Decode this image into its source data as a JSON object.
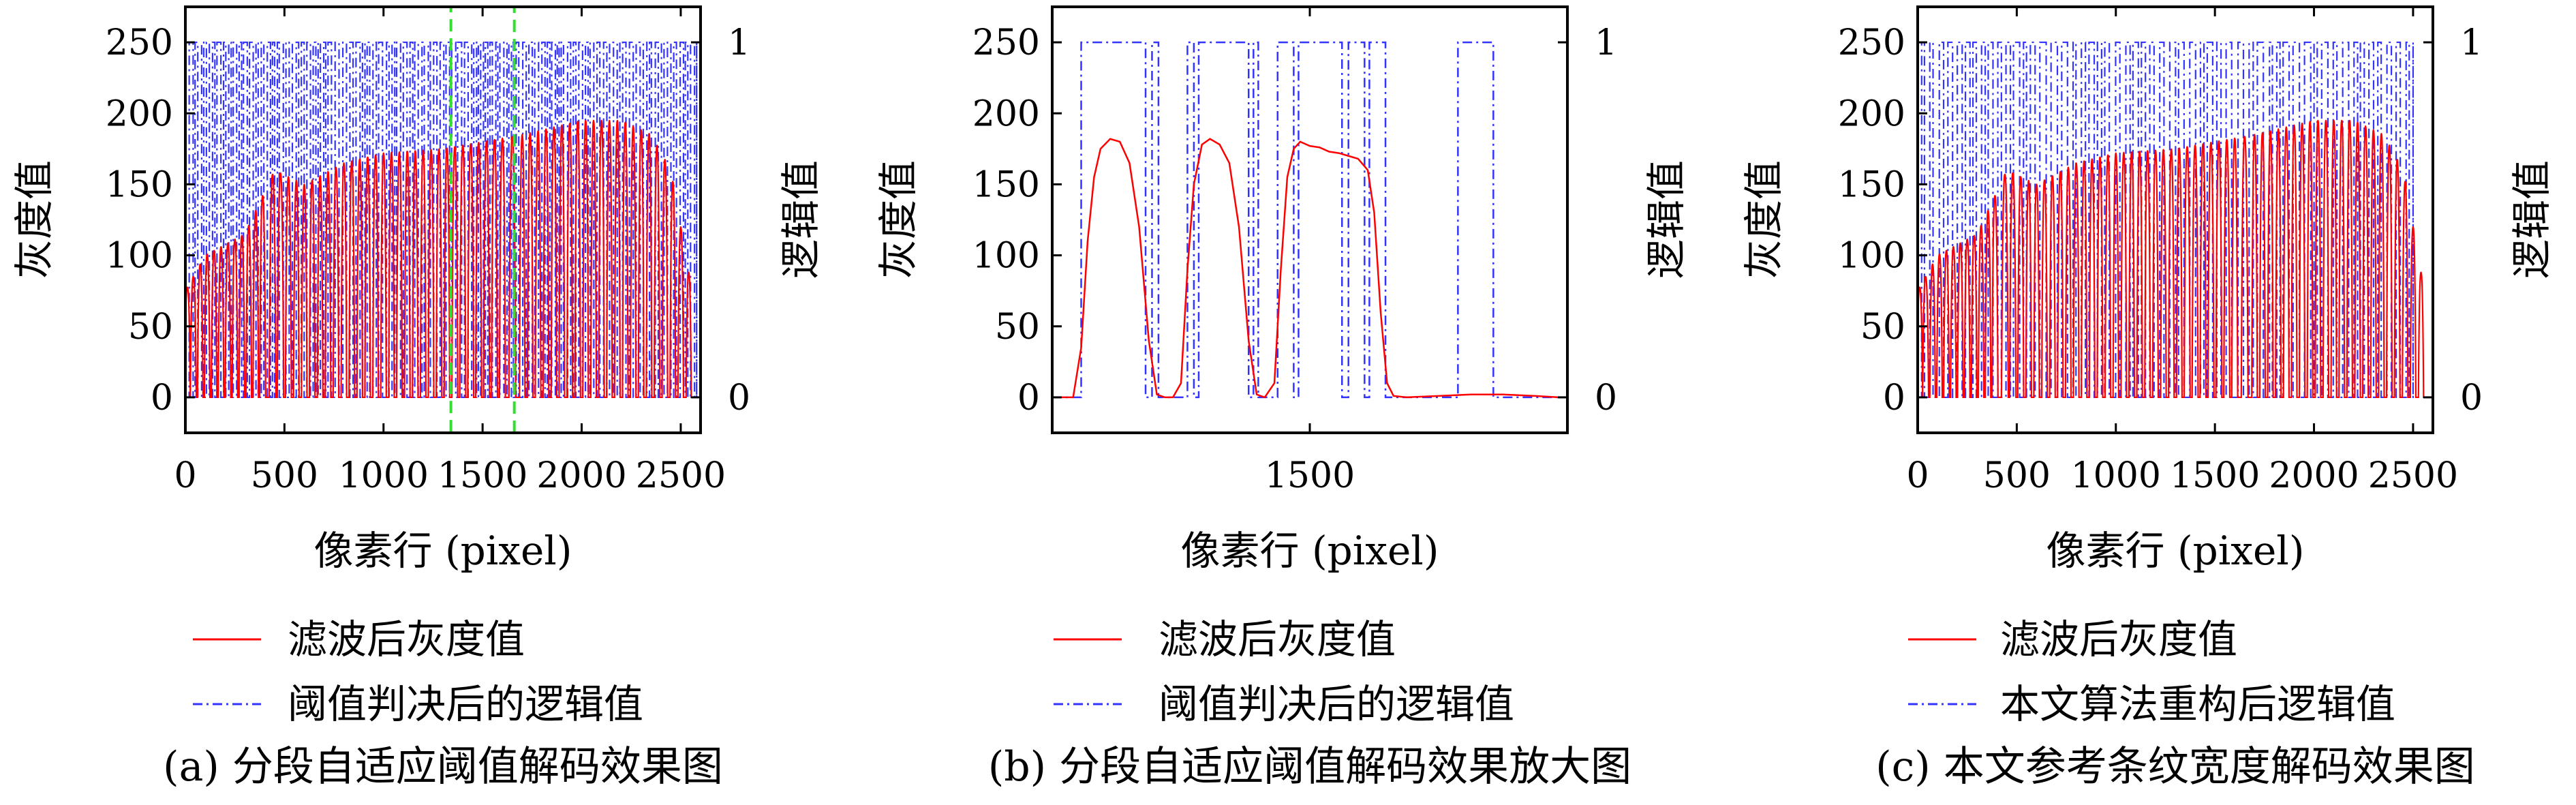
{
  "chart_data": [
    {
      "type": "line",
      "caption": "(a) 分段自适应阈值解码效果图",
      "xlabel": "像素行 (pixel)",
      "ylabel": "灰度值",
      "y2label": "逻辑值",
      "xlim": [
        0,
        2600
      ],
      "ylim": [
        -25,
        275
      ],
      "y2lim": [
        -0.1,
        1.1
      ],
      "xticks": [
        0,
        500,
        1000,
        1500,
        2000,
        2500
      ],
      "xtick_labels": [
        "0",
        "500",
        "1000",
        "1500",
        "2000",
        "2500"
      ],
      "yticks": [
        0,
        50,
        100,
        150,
        200,
        250
      ],
      "ytick_labels": [
        "0",
        "50",
        "100",
        "150",
        "200",
        "250"
      ],
      "y2ticks": [
        0,
        1
      ],
      "y2tick_labels": [
        "0",
        "1"
      ],
      "highlight_range": [
        1340,
        1660
      ],
      "series": [
        {
          "name": "滤波后灰度值",
          "color": "#ff0000",
          "style": "solid",
          "envelope": [
            [
              0,
              75
            ],
            [
              100,
              100
            ],
            [
              300,
              115
            ],
            [
              450,
              160
            ],
            [
              600,
              150
            ],
            [
              800,
              165
            ],
            [
              1000,
              172
            ],
            [
              1300,
              175
            ],
            [
              1500,
              180
            ],
            [
              1700,
              185
            ],
            [
              2000,
              195
            ],
            [
              2200,
              195
            ],
            [
              2350,
              185
            ],
            [
              2450,
              160
            ],
            [
              2550,
              80
            ],
            [
              2600,
              70
            ]
          ],
          "bars": [
            [
              10,
              30
            ],
            [
              40,
              30
            ],
            [
              75,
              28
            ],
            [
              110,
              28
            ],
            [
              145,
              28
            ],
            [
              180,
              28
            ],
            [
              215,
              28
            ],
            [
              250,
              28
            ],
            [
              285,
              28
            ],
            [
              320,
              28
            ],
            [
              355,
              28
            ],
            [
              390,
              30
            ],
            [
              440,
              34
            ],
            [
              480,
              32
            ],
            [
              520,
              30
            ],
            [
              560,
              28
            ],
            [
              600,
              28
            ],
            [
              640,
              28
            ],
            [
              680,
              28
            ],
            [
              720,
              28
            ],
            [
              760,
              28
            ],
            [
              800,
              28
            ],
            [
              840,
              28
            ],
            [
              880,
              28
            ],
            [
              920,
              28
            ],
            [
              960,
              28
            ],
            [
              1000,
              28
            ],
            [
              1040,
              28
            ],
            [
              1080,
              28
            ],
            [
              1120,
              28
            ],
            [
              1160,
              28
            ],
            [
              1200,
              28
            ],
            [
              1240,
              28
            ],
            [
              1280,
              28
            ],
            [
              1320,
              28
            ],
            [
              1360,
              30
            ],
            [
              1400,
              30
            ],
            [
              1440,
              30
            ],
            [
              1480,
              30
            ],
            [
              1520,
              30
            ],
            [
              1560,
              30
            ],
            [
              1600,
              30
            ],
            [
              1650,
              34
            ],
            [
              1700,
              28
            ],
            [
              1740,
              28
            ],
            [
              1780,
              28
            ],
            [
              1820,
              28
            ],
            [
              1860,
              28
            ],
            [
              1900,
              28
            ],
            [
              1940,
              28
            ],
            [
              1980,
              28
            ],
            [
              2020,
              28
            ],
            [
              2060,
              28
            ],
            [
              2100,
              28
            ],
            [
              2140,
              28
            ],
            [
              2180,
              28
            ],
            [
              2220,
              28
            ],
            [
              2260,
              28
            ],
            [
              2300,
              28
            ],
            [
              2340,
              28
            ],
            [
              2380,
              28
            ],
            [
              2420,
              28
            ],
            [
              2460,
              28
            ],
            [
              2500,
              28
            ],
            [
              2540,
              26
            ]
          ]
        },
        {
          "name": "阈值判决后的逻辑值",
          "color": "#3333ff",
          "style": "dashdot",
          "pattern": "dense",
          "x_range": [
            0,
            2580
          ]
        }
      ]
    },
    {
      "type": "line",
      "caption": "(b) 分段自适应阈值解码效果放大图",
      "xlabel": "像素行 (pixel)",
      "ylabel": "灰度值",
      "y2label": "逻辑值",
      "xlim": [
        1340,
        1660
      ],
      "ylim": [
        -25,
        275
      ],
      "y2lim": [
        -0.1,
        1.1
      ],
      "xticks": [
        1500
      ],
      "xtick_labels": [
        "1500"
      ],
      "yticks": [
        0,
        50,
        100,
        150,
        200,
        250
      ],
      "ytick_labels": [
        "0",
        "50",
        "100",
        "150",
        "200",
        "250"
      ],
      "y2ticks": [
        0,
        1
      ],
      "y2tick_labels": [
        "0",
        "1"
      ],
      "series": [
        {
          "name": "滤波后灰度值",
          "color": "#ff0000",
          "style": "solid",
          "points": [
            [
              1340,
              0
            ],
            [
              1353,
              0
            ],
            [
              1358,
              35
            ],
            [
              1362,
              110
            ],
            [
              1366,
              155
            ],
            [
              1370,
              175
            ],
            [
              1376,
              182
            ],
            [
              1382,
              180
            ],
            [
              1388,
              165
            ],
            [
              1394,
              120
            ],
            [
              1400,
              40
            ],
            [
              1405,
              2
            ],
            [
              1410,
              0
            ],
            [
              1415,
              0
            ],
            [
              1420,
              10
            ],
            [
              1424,
              90
            ],
            [
              1428,
              150
            ],
            [
              1433,
              178
            ],
            [
              1438,
              182
            ],
            [
              1444,
              178
            ],
            [
              1450,
              165
            ],
            [
              1456,
              120
            ],
            [
              1462,
              40
            ],
            [
              1467,
              2
            ],
            [
              1472,
              0
            ],
            [
              1478,
              10
            ],
            [
              1482,
              90
            ],
            [
              1486,
              155
            ],
            [
              1490,
              175
            ],
            [
              1494,
              180
            ],
            [
              1500,
              177
            ],
            [
              1506,
              176
            ],
            [
              1512,
              173
            ],
            [
              1518,
              172
            ],
            [
              1524,
              170
            ],
            [
              1530,
              168
            ],
            [
              1536,
              160
            ],
            [
              1540,
              130
            ],
            [
              1544,
              60
            ],
            [
              1548,
              10
            ],
            [
              1552,
              1
            ],
            [
              1560,
              0
            ],
            [
              1580,
              1
            ],
            [
              1600,
              2
            ],
            [
              1620,
              2
            ],
            [
              1640,
              1
            ],
            [
              1655,
              0
            ],
            [
              1660,
              0
            ]
          ]
        },
        {
          "name": "阈值判决后的逻辑值",
          "color": "#3333ff",
          "style": "dashdot",
          "steps": [
            [
              1340,
              0
            ],
            [
              1358,
              1
            ],
            [
              1398,
              0
            ],
            [
              1402,
              1
            ],
            [
              1406,
              0
            ],
            [
              1424,
              1
            ],
            [
              1428,
              0
            ],
            [
              1431,
              1
            ],
            [
              1462,
              0
            ],
            [
              1465,
              1
            ],
            [
              1468,
              0
            ],
            [
              1480,
              1
            ],
            [
              1490,
              0
            ],
            [
              1493,
              1
            ],
            [
              1520,
              0
            ],
            [
              1524,
              1
            ],
            [
              1534,
              0
            ],
            [
              1537,
              1
            ],
            [
              1547,
              0
            ],
            [
              1592,
              1
            ],
            [
              1614,
              0
            ],
            [
              1660,
              0
            ]
          ]
        }
      ]
    },
    {
      "type": "line",
      "caption": "(c) 本文参考条纹宽度解码效果图",
      "xlabel": "像素行 (pixel)",
      "ylabel": "灰度值",
      "y2label": "逻辑值",
      "xlim": [
        0,
        2600
      ],
      "ylim": [
        -25,
        275
      ],
      "y2lim": [
        -0.1,
        1.1
      ],
      "xticks": [
        0,
        500,
        1000,
        1500,
        2000,
        2500
      ],
      "xtick_labels": [
        "0",
        "500",
        "1000",
        "1500",
        "2000",
        "2500"
      ],
      "yticks": [
        0,
        50,
        100,
        150,
        200,
        250
      ],
      "ytick_labels": [
        "0",
        "50",
        "100",
        "150",
        "200",
        "250"
      ],
      "y2ticks": [
        0,
        1
      ],
      "y2tick_labels": [
        "0",
        "1"
      ],
      "series": [
        {
          "name": "滤波后灰度值",
          "color": "#ff0000",
          "style": "solid",
          "envelope": [
            [
              0,
              75
            ],
            [
              100,
              100
            ],
            [
              300,
              115
            ],
            [
              450,
              160
            ],
            [
              600,
              150
            ],
            [
              800,
              165
            ],
            [
              1000,
              172
            ],
            [
              1300,
              175
            ],
            [
              1500,
              180
            ],
            [
              1700,
              185
            ],
            [
              2000,
              195
            ],
            [
              2200,
              195
            ],
            [
              2350,
              185
            ],
            [
              2450,
              160
            ],
            [
              2550,
              80
            ],
            [
              2600,
              70
            ]
          ],
          "bars": [
            [
              10,
              30
            ],
            [
              40,
              30
            ],
            [
              75,
              28
            ],
            [
              110,
              28
            ],
            [
              145,
              28
            ],
            [
              180,
              28
            ],
            [
              215,
              28
            ],
            [
              250,
              28
            ],
            [
              285,
              28
            ],
            [
              320,
              28
            ],
            [
              355,
              28
            ],
            [
              390,
              30
            ],
            [
              440,
              34
            ],
            [
              480,
              32
            ],
            [
              520,
              30
            ],
            [
              560,
              28
            ],
            [
              600,
              28
            ],
            [
              640,
              28
            ],
            [
              680,
              28
            ],
            [
              720,
              28
            ],
            [
              760,
              28
            ],
            [
              800,
              28
            ],
            [
              840,
              28
            ],
            [
              880,
              28
            ],
            [
              920,
              28
            ],
            [
              960,
              28
            ],
            [
              1000,
              28
            ],
            [
              1040,
              28
            ],
            [
              1080,
              28
            ],
            [
              1120,
              28
            ],
            [
              1160,
              28
            ],
            [
              1200,
              28
            ],
            [
              1240,
              28
            ],
            [
              1280,
              28
            ],
            [
              1320,
              28
            ],
            [
              1360,
              30
            ],
            [
              1400,
              30
            ],
            [
              1440,
              30
            ],
            [
              1480,
              30
            ],
            [
              1520,
              30
            ],
            [
              1560,
              30
            ],
            [
              1600,
              30
            ],
            [
              1650,
              34
            ],
            [
              1700,
              28
            ],
            [
              1740,
              28
            ],
            [
              1780,
              28
            ],
            [
              1820,
              28
            ],
            [
              1860,
              28
            ],
            [
              1900,
              28
            ],
            [
              1940,
              28
            ],
            [
              1980,
              28
            ],
            [
              2020,
              28
            ],
            [
              2060,
              28
            ],
            [
              2100,
              28
            ],
            [
              2140,
              28
            ],
            [
              2180,
              28
            ],
            [
              2220,
              28
            ],
            [
              2260,
              28
            ],
            [
              2300,
              28
            ],
            [
              2340,
              28
            ],
            [
              2380,
              28
            ],
            [
              2420,
              28
            ],
            [
              2460,
              28
            ],
            [
              2500,
              28
            ],
            [
              2540,
              26
            ]
          ]
        },
        {
          "name": "本文算法重构后逻辑值",
          "color": "#3333ff",
          "style": "dashdot",
          "pattern": "sparse",
          "x_range": [
            0,
            2500
          ]
        }
      ]
    }
  ]
}
